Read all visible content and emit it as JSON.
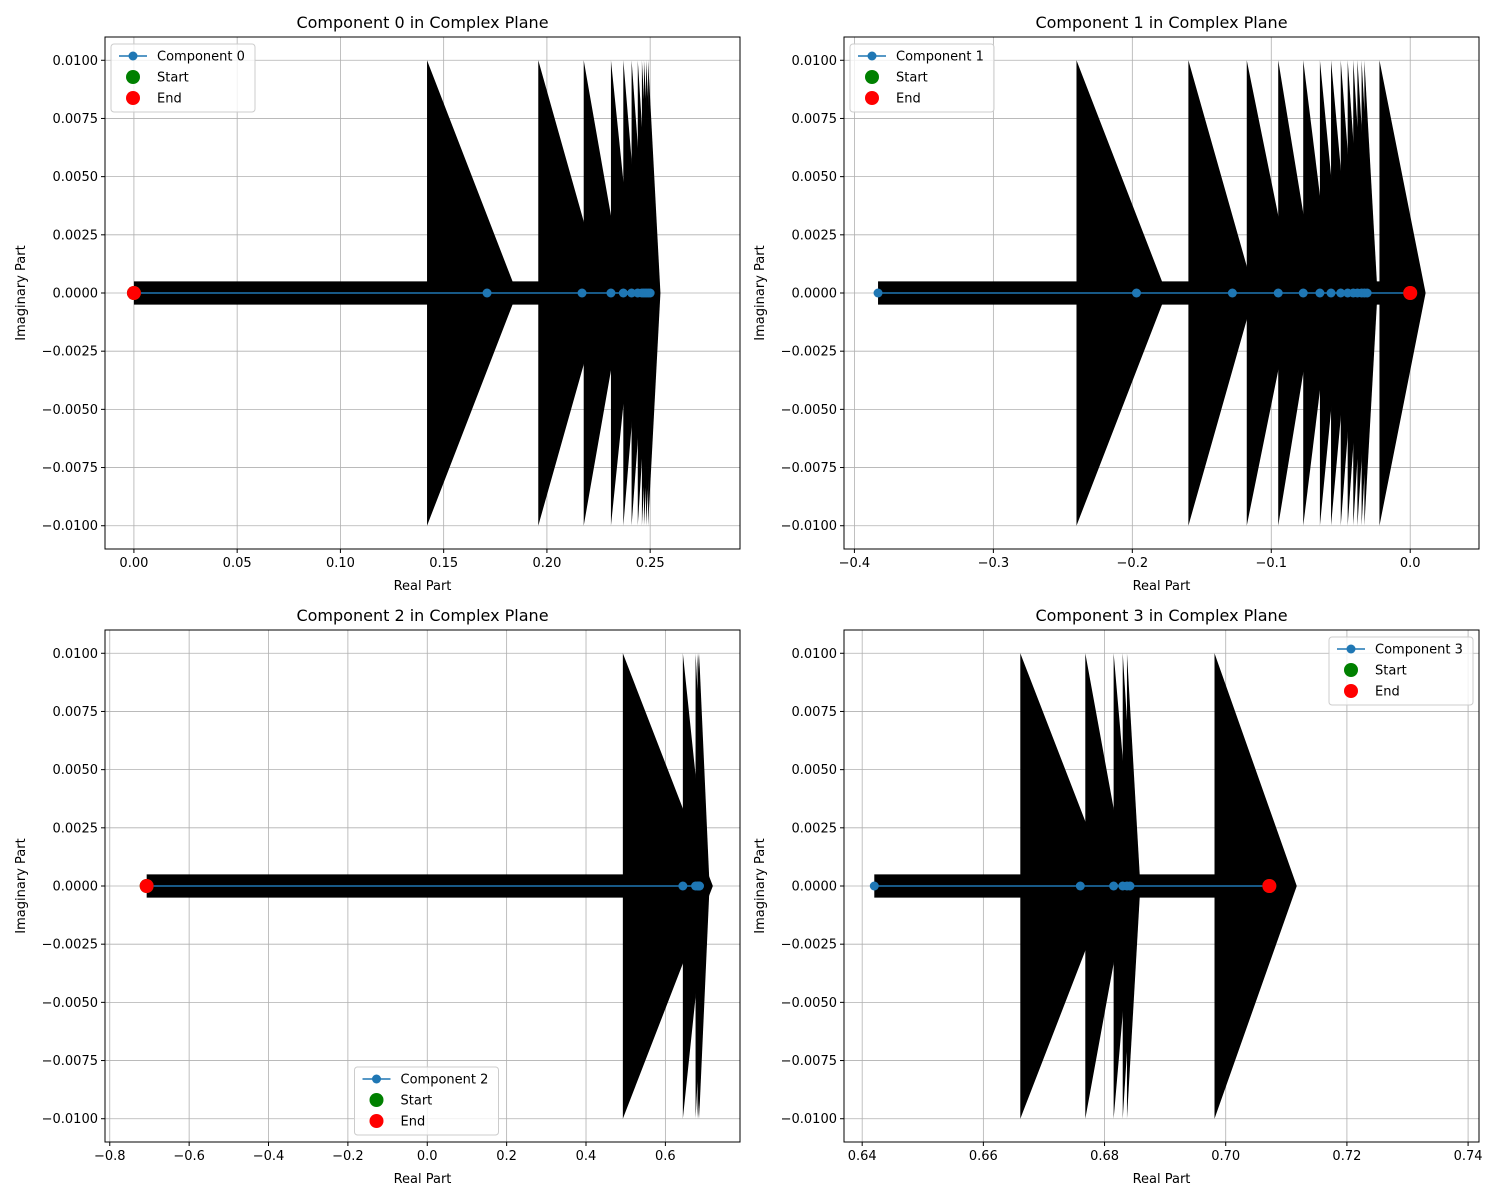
{
  "colors": {
    "line": "#1f77b4",
    "start": "green",
    "end": "red",
    "arrow": "#000000",
    "grid": "#b0b0b0"
  },
  "chart_data": [
    {
      "type": "line",
      "title": "Component 0 in Complex Plane",
      "xlabel": "Real Part",
      "ylabel": "Imaginary Part",
      "grid": true,
      "legend_loc": "upper-left",
      "xlim": [
        -0.014,
        0.2935
      ],
      "ylim": [
        -0.011,
        0.011
      ],
      "xticks": [
        0.0,
        0.05,
        0.1,
        0.15,
        0.2,
        0.25
      ],
      "xtick_labels": [
        "0.00",
        "0.05",
        "0.10",
        "0.15",
        "0.20",
        "0.25"
      ],
      "yticks": [
        -0.01,
        -0.0075,
        -0.005,
        -0.0025,
        0.0,
        0.0025,
        0.005,
        0.0075,
        0.01
      ],
      "ytick_labels": [
        "−0.0100",
        "−0.0075",
        "−0.0050",
        "−0.0025",
        "0.0000",
        "0.0025",
        "0.0050",
        "0.0075",
        "0.0100"
      ],
      "series": [
        {
          "name": "Component 0",
          "x": [
            0.0,
            0.171,
            0.217,
            0.231,
            0.237,
            0.241,
            0.244,
            0.246,
            0.247,
            0.248,
            0.249,
            0.25
          ],
          "y": [
            0,
            0,
            0,
            0,
            0,
            0,
            0,
            0,
            0,
            0,
            0,
            0
          ]
        }
      ],
      "start": {
        "name": "Start",
        "x": 0.0,
        "y": 0.0
      },
      "end": {
        "name": "End",
        "x": 0.0,
        "y": 0.0
      }
    },
    {
      "type": "line",
      "title": "Component 1 in Complex Plane",
      "xlabel": "Real Part",
      "ylabel": "Imaginary Part",
      "grid": true,
      "legend_loc": "upper-left",
      "xlim": [
        -0.4075,
        0.0495
      ],
      "ylim": [
        -0.011,
        0.011
      ],
      "xticks": [
        -0.4,
        -0.3,
        -0.2,
        -0.1,
        0.0
      ],
      "xtick_labels": [
        "−0.4",
        "−0.3",
        "−0.2",
        "−0.1",
        "0.0"
      ],
      "yticks": [
        -0.01,
        -0.0075,
        -0.005,
        -0.0025,
        0.0,
        0.0025,
        0.005,
        0.0075,
        0.01
      ],
      "ytick_labels": [
        "−0.0100",
        "−0.0075",
        "−0.0050",
        "−0.0025",
        "0.0000",
        "0.0025",
        "0.0050",
        "0.0075",
        "0.0100"
      ],
      "series": [
        {
          "name": "Component 1",
          "x": [
            -0.383,
            -0.197,
            -0.128,
            -0.095,
            -0.077,
            -0.065,
            -0.057,
            -0.05,
            -0.045,
            -0.041,
            -0.038,
            -0.035,
            -0.033,
            -0.031,
            0.0
          ],
          "y": [
            0,
            0,
            0,
            0,
            0,
            0,
            0,
            0,
            0,
            0,
            0,
            0,
            0,
            0,
            0
          ]
        }
      ],
      "start": {
        "name": "Start",
        "x": 0.0,
        "y": 0.0
      },
      "end": {
        "name": "End",
        "x": 0.0,
        "y": 0.0
      }
    },
    {
      "type": "line",
      "title": "Component 2 in Complex Plane",
      "xlabel": "Real Part",
      "ylabel": "Imaginary Part",
      "grid": true,
      "legend_loc": "lower-center",
      "xlim": [
        -0.812,
        0.788
      ],
      "ylim": [
        -0.011,
        0.011
      ],
      "xticks": [
        -0.8,
        -0.6,
        -0.4,
        -0.2,
        0.0,
        0.2,
        0.4,
        0.6
      ],
      "xtick_labels": [
        "−0.8",
        "−0.6",
        "−0.4",
        "−0.2",
        "0.0",
        "0.2",
        "0.4",
        "0.6"
      ],
      "yticks": [
        -0.01,
        -0.0075,
        -0.005,
        -0.0025,
        0.0,
        0.0025,
        0.005,
        0.0075,
        0.01
      ],
      "ytick_labels": [
        "−0.0100",
        "−0.0075",
        "−0.0050",
        "−0.0025",
        "0.0000",
        "0.0025",
        "0.0050",
        "0.0075",
        "0.0100"
      ],
      "series": [
        {
          "name": "Component 2",
          "x": [
            -0.707,
            0.644,
            0.676,
            0.681,
            0.683,
            0.684,
            0.685,
            0.686
          ],
          "y": [
            0,
            0,
            0,
            0,
            0,
            0,
            0,
            0
          ]
        }
      ],
      "start": {
        "name": "Start",
        "x": -0.707,
        "y": 0.0
      },
      "end": {
        "name": "End",
        "x": -0.707,
        "y": 0.0
      }
    },
    {
      "type": "line",
      "title": "Component 3 in Complex Plane",
      "xlabel": "Real Part",
      "ylabel": "Imaginary Part",
      "grid": true,
      "legend_loc": "upper-right",
      "xlim": [
        0.637,
        0.7418
      ],
      "ylim": [
        -0.011,
        0.011
      ],
      "xticks": [
        0.64,
        0.66,
        0.68,
        0.7,
        0.72,
        0.74
      ],
      "xtick_labels": [
        "0.64",
        "0.66",
        "0.68",
        "0.70",
        "0.72",
        "0.74"
      ],
      "yticks": [
        -0.01,
        -0.0075,
        -0.005,
        -0.0025,
        0.0,
        0.0025,
        0.005,
        0.0075,
        0.01
      ],
      "ytick_labels": [
        "−0.0100",
        "−0.0075",
        "−0.0050",
        "−0.0025",
        "0.0000",
        "0.0025",
        "0.0050",
        "0.0075",
        "0.0100"
      ],
      "series": [
        {
          "name": "Component 3",
          "x": [
            0.642,
            0.676,
            0.6815,
            0.683,
            0.6837,
            0.6842,
            0.7072
          ],
          "y": [
            0,
            0,
            0,
            0,
            0,
            0,
            0
          ]
        }
      ],
      "start": {
        "name": "Start",
        "x": 0.7072,
        "y": 0.0
      },
      "end": {
        "name": "End",
        "x": 0.7072,
        "y": 0.0
      }
    }
  ]
}
